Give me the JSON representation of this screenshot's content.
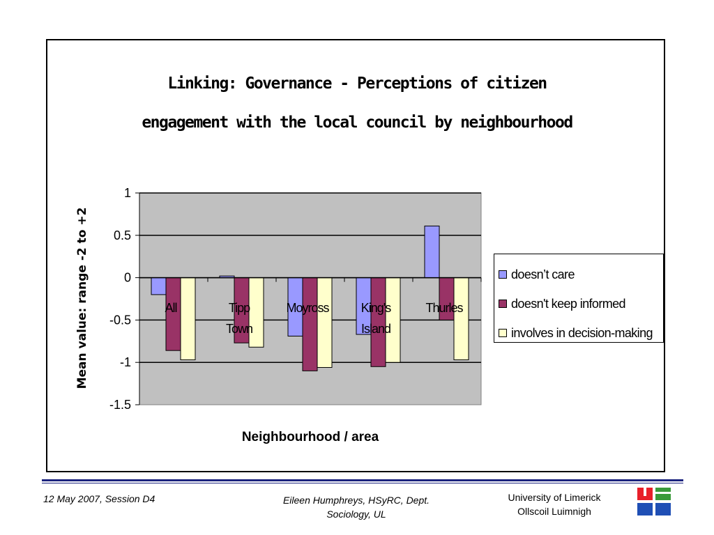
{
  "chart_data": {
    "type": "bar",
    "title": [
      "Linking: Governance - Perceptions of citizen",
      "engagement with the local council by neighbourhood"
    ],
    "xlabel": "Neighbourhood / area",
    "ylabel": "Mean value: range -2 to +2",
    "categories": [
      [
        "All"
      ],
      [
        "Tipp",
        "Town"
      ],
      [
        "Moyross"
      ],
      [
        "King's",
        "Island"
      ],
      [
        "Thurles"
      ]
    ],
    "series": [
      {
        "name": "doesn’t care",
        "color": "#9999ff",
        "values": [
          -0.2,
          0.02,
          -0.69,
          -0.67,
          0.61
        ]
      },
      {
        "name": "doesn't keep informed",
        "color": "#993366",
        "values": [
          -0.86,
          -0.77,
          -1.1,
          -1.05,
          -0.5
        ]
      },
      {
        "name": "involves in decision-making",
        "color": "#ffffcc",
        "values": [
          -0.97,
          -0.82,
          -1.06,
          -1.0,
          -0.97
        ]
      }
    ],
    "ylim": [
      -1.5,
      1
    ],
    "yticks": [
      "1",
      "0.5",
      "0",
      "-0.5",
      "-1",
      "-1.5"
    ],
    "ytick_values": [
      1,
      0.5,
      0,
      -0.5,
      -1,
      -1.5
    ],
    "grid": true,
    "plot_background": "#c0c0c0",
    "legend_position": "right"
  },
  "footer": {
    "left": "12 May 2007, Session D4",
    "center_lines": [
      "Eileen Humphreys, HSyRC, Dept.",
      "Sociology, UL"
    ],
    "right_lines": [
      "University of Limerick",
      "Ollscoil Luimnigh"
    ]
  },
  "colors": {
    "footer_rule": "#1a237e",
    "logo_red": "#e8202a",
    "logo_green": "#3a9a3a",
    "logo_blue": "#1f4fb5"
  }
}
